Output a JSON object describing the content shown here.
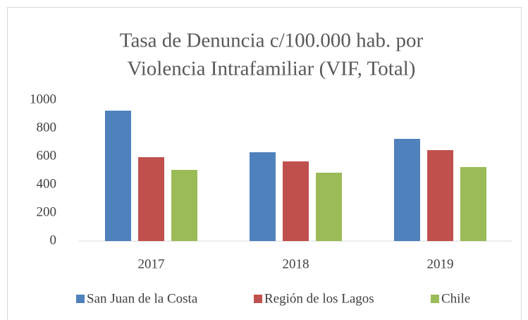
{
  "chart_data": {
    "type": "bar",
    "title": [
      "Tasa de Denuncia c/100.000 hab. por",
      "Violencia Intrafamiliar (VIF, Total)"
    ],
    "categories": [
      "2017",
      "2018",
      "2019"
    ],
    "series": [
      {
        "name": "San Juan de la Costa",
        "color": "#4f81bd",
        "values": [
          925,
          630,
          725
        ]
      },
      {
        "name": "Región de los Lagos",
        "color": "#c0504d",
        "values": [
          595,
          565,
          645
        ]
      },
      {
        "name": "Chile",
        "color": "#9bbb59",
        "values": [
          505,
          485,
          525
        ]
      }
    ],
    "ylim": [
      0,
      1000
    ],
    "yticks": [
      0,
      200,
      400,
      600,
      800,
      1000
    ],
    "grid": false,
    "legend": "bottom"
  }
}
